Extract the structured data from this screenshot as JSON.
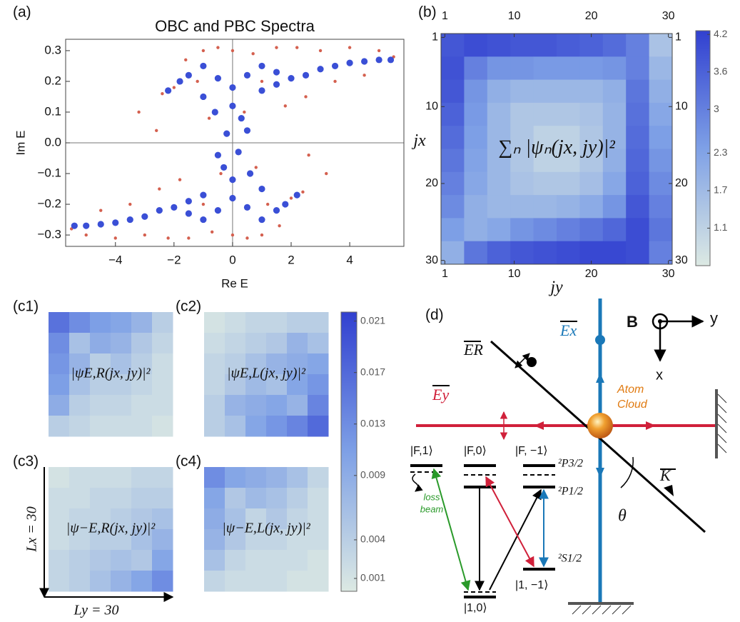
{
  "chart_data": [
    {
      "type": "scatter",
      "panel": "(a)",
      "title": "OBC and PBC Spectra",
      "xlabel": "Re E",
      "ylabel": "Im E",
      "xlim": [
        -5.7,
        5.85
      ],
      "ylim": [
        -0.337,
        0.337
      ],
      "xticks": [
        {
          "value": -4,
          "label": "−4"
        },
        {
          "value": -2,
          "label": "−2"
        },
        0,
        2,
        4
      ],
      "yticks": [
        {
          "value": -0.3,
          "label": "−0.3"
        },
        {
          "value": -0.2,
          "label": "−0.2"
        },
        {
          "value": -0.1,
          "label": "−0.1"
        },
        {
          "value": 0,
          "label": "0.0"
        },
        0.1,
        0.2,
        0.3
      ],
      "zero_lines": true,
      "series": [
        {
          "color": "#d4604f",
          "x": [
            -3.2,
            -2.6,
            -2.0,
            -1.6,
            -1.0,
            -0.5,
            0,
            0.7,
            1.5,
            2.2,
            3.0,
            4.0,
            5.0,
            5.5,
            4.5,
            3.5,
            2.5,
            1.8,
            1.0,
            -1.2,
            -2.4,
            -0.8,
            0.4,
            3.2,
            2.6,
            2.0,
            1.6,
            1.0,
            0.5,
            0,
            -0.7,
            -1.5,
            -2.2,
            -3.0,
            -4.0,
            -5.0,
            -5.5,
            -4.5,
            -3.5,
            -2.5,
            -1.8,
            -1.0,
            1.2,
            2.4,
            0.8,
            -0.4
          ],
          "values": [
            0.1,
            0.04,
            0.18,
            0.27,
            0.3,
            0.31,
            0.3,
            0.29,
            0.31,
            0.31,
            0.3,
            0.31,
            0.3,
            0.28,
            0.22,
            0.2,
            0.15,
            0.12,
            0.2,
            0.2,
            0.16,
            0.08,
            0.1,
            -0.1,
            -0.04,
            -0.18,
            -0.27,
            -0.3,
            -0.31,
            -0.3,
            -0.29,
            -0.31,
            -0.31,
            -0.3,
            -0.31,
            -0.3,
            -0.28,
            -0.22,
            -0.2,
            -0.15,
            -0.12,
            -0.2,
            -0.2,
            -0.16,
            -0.08,
            -0.1
          ]
        },
        {
          "color": "#3a4fd6",
          "x": [
            -2.2,
            -1.8,
            -1.5,
            -1.0,
            -0.5,
            0,
            0.5,
            1.0,
            1.5,
            2.0,
            2.5,
            3.0,
            3.5,
            4.0,
            4.5,
            5.0,
            5.4,
            -1.0,
            0,
            0.3,
            -0.2,
            0.5,
            1.0,
            -0.6,
            1.5,
            2.2,
            1.8,
            1.5,
            1.0,
            0.5,
            0,
            -0.5,
            -1.0,
            -1.5,
            -2.0,
            -2.5,
            -3.0,
            -3.5,
            -4.0,
            -4.5,
            -5.0,
            -5.4,
            1.0,
            0,
            -0.3,
            0.2,
            -0.5,
            -1.0,
            0.6,
            -1.5
          ],
          "values": [
            0.17,
            0.2,
            0.22,
            0.25,
            0.21,
            0.18,
            0.22,
            0.25,
            0.23,
            0.21,
            0.22,
            0.24,
            0.25,
            0.26,
            0.265,
            0.27,
            0.27,
            0.15,
            0.12,
            0.08,
            0.03,
            0.04,
            0.17,
            0.1,
            0.19,
            -0.17,
            -0.2,
            -0.22,
            -0.25,
            -0.21,
            -0.18,
            -0.22,
            -0.25,
            -0.23,
            -0.21,
            -0.22,
            -0.24,
            -0.25,
            -0.26,
            -0.265,
            -0.27,
            -0.27,
            -0.15,
            -0.12,
            -0.08,
            -0.03,
            -0.04,
            -0.17,
            -0.1,
            -0.19
          ]
        }
      ]
    },
    {
      "type": "heatmap",
      "panel": "(b)",
      "xlabel": "jy",
      "ylabel": "jx",
      "annotation": "∑ₙ |ψₙ(jx, jy)|²",
      "xlim": [
        0.5,
        30.5
      ],
      "ylim": [
        0.5,
        30.5
      ],
      "xticks": [
        1,
        10,
        20,
        30
      ],
      "yticks": [
        1,
        10,
        20,
        30
      ],
      "colormap": [
        "#dce9e3",
        "#7ea0e6",
        "#3140d0"
      ],
      "colorbar": {
        "lim": [
          0.5,
          4.26
        ],
        "ticks": [
          1.1,
          1.7,
          2.3,
          3.0,
          3.6,
          4.2
        ]
      },
      "matrix": [
        [
          3.8,
          4.0,
          3.9,
          3.8,
          3.8,
          3.7,
          3.6,
          3.4,
          3.0,
          1.5
        ],
        [
          3.9,
          3.0,
          2.6,
          2.6,
          2.5,
          2.5,
          2.5,
          2.6,
          3.0,
          1.8
        ],
        [
          3.8,
          2.6,
          2.0,
          1.8,
          1.8,
          1.8,
          1.8,
          2.0,
          3.2,
          2.0
        ],
        [
          3.6,
          2.5,
          1.8,
          1.4,
          1.4,
          1.4,
          1.5,
          1.9,
          3.3,
          2.2
        ],
        [
          3.4,
          2.4,
          1.8,
          1.4,
          1.1,
          1.1,
          1.4,
          1.9,
          3.4,
          2.4
        ],
        [
          3.2,
          2.3,
          1.8,
          1.4,
          1.1,
          1.1,
          1.4,
          2.0,
          3.5,
          2.6
        ],
        [
          3.0,
          2.2,
          1.8,
          1.5,
          1.4,
          1.4,
          1.6,
          2.2,
          3.6,
          2.8
        ],
        [
          2.8,
          2.0,
          1.8,
          1.8,
          1.8,
          1.9,
          2.1,
          2.6,
          3.8,
          3.0
        ],
        [
          2.4,
          2.0,
          2.2,
          2.6,
          2.8,
          3.0,
          3.2,
          3.5,
          4.0,
          3.2
        ],
        [
          2.0,
          3.2,
          3.6,
          3.8,
          3.9,
          4.0,
          4.1,
          4.1,
          4.0,
          3.0
        ]
      ]
    },
    {
      "type": "heatmap",
      "panel": "(c1)",
      "annotation": "|ψE,R(jx, jy)|²",
      "colormap": [
        "#dce9e3",
        "#7ea0e6",
        "#3140d0"
      ],
      "colorbar": {
        "lim": [
          0,
          0.0217
        ],
        "ticks": [
          0.001,
          0.004,
          0.009,
          0.013,
          0.017,
          0.021
        ]
      },
      "clim": [
        0,
        0.0217
      ],
      "matrix": [
        [
          0.016,
          0.013,
          0.011,
          0.01,
          0.008,
          0.004
        ],
        [
          0.013,
          0.006,
          0.009,
          0.008,
          0.005,
          0.003
        ],
        [
          0.012,
          0.008,
          0.004,
          0.006,
          0.004,
          0.002
        ],
        [
          0.011,
          0.006,
          0.004,
          0.004,
          0.003,
          0.002
        ],
        [
          0.009,
          0.004,
          0.003,
          0.003,
          0.002,
          0.002
        ],
        [
          0.004,
          0.003,
          0.002,
          0.002,
          0.002,
          0.001
        ]
      ]
    },
    {
      "type": "heatmap",
      "panel": "(c2)",
      "annotation": "|ψE,L(jx, jy)|²",
      "colormap": [
        "#dce9e3",
        "#7ea0e6",
        "#3140d0"
      ],
      "clim": [
        0,
        0.0217
      ],
      "matrix": [
        [
          0.001,
          0.002,
          0.003,
          0.003,
          0.004,
          0.004
        ],
        [
          0.002,
          0.003,
          0.004,
          0.005,
          0.008,
          0.006
        ],
        [
          0.003,
          0.004,
          0.006,
          0.008,
          0.009,
          0.01
        ],
        [
          0.003,
          0.005,
          0.007,
          0.006,
          0.01,
          0.012
        ],
        [
          0.004,
          0.008,
          0.009,
          0.01,
          0.008,
          0.014
        ],
        [
          0.004,
          0.006,
          0.01,
          0.012,
          0.014,
          0.017
        ]
      ]
    },
    {
      "type": "heatmap",
      "panel": "(c3)",
      "annotation": "|ψ−E,R(jx, jy)|²",
      "xlabel": "Ly = 30",
      "ylabel": "Lx = 30",
      "colormap": [
        "#dce9e3",
        "#7ea0e6",
        "#3140d0"
      ],
      "clim": [
        0,
        0.0217
      ],
      "matrix": [
        [
          0.001,
          0.002,
          0.002,
          0.002,
          0.003,
          0.003
        ],
        [
          0.002,
          0.002,
          0.003,
          0.003,
          0.004,
          0.004
        ],
        [
          0.002,
          0.003,
          0.003,
          0.004,
          0.005,
          0.006
        ],
        [
          0.002,
          0.003,
          0.004,
          0.004,
          0.006,
          0.008
        ],
        [
          0.003,
          0.004,
          0.005,
          0.006,
          0.005,
          0.01
        ],
        [
          0.003,
          0.004,
          0.006,
          0.008,
          0.01,
          0.013
        ]
      ]
    },
    {
      "type": "heatmap",
      "panel": "(c4)",
      "annotation": "|ψ−E,L(jx, jy)|²",
      "colormap": [
        "#dce9e3",
        "#7ea0e6",
        "#3140d0"
      ],
      "clim": [
        0,
        0.0217
      ],
      "matrix": [
        [
          0.013,
          0.01,
          0.009,
          0.008,
          0.006,
          0.003
        ],
        [
          0.01,
          0.005,
          0.007,
          0.006,
          0.004,
          0.002
        ],
        [
          0.009,
          0.006,
          0.003,
          0.005,
          0.003,
          0.002
        ],
        [
          0.008,
          0.005,
          0.003,
          0.003,
          0.002,
          0.002
        ],
        [
          0.006,
          0.003,
          0.002,
          0.002,
          0.002,
          0.001
        ],
        [
          0.003,
          0.002,
          0.002,
          0.002,
          0.001,
          0.001
        ]
      ]
    }
  ],
  "diagram": {
    "panel": "(d)",
    "labels": [
      "ER",
      "Ex",
      "Ey",
      "B",
      "y",
      "x",
      "Atom",
      "Cloud",
      "K",
      "θ",
      "|F,1⟩",
      "|F,0⟩",
      "|F, −1⟩",
      "²P3/2",
      "²P1/2",
      "²S1/2",
      "|1,0⟩",
      "|1, −1⟩",
      "loss",
      "beam"
    ]
  }
}
